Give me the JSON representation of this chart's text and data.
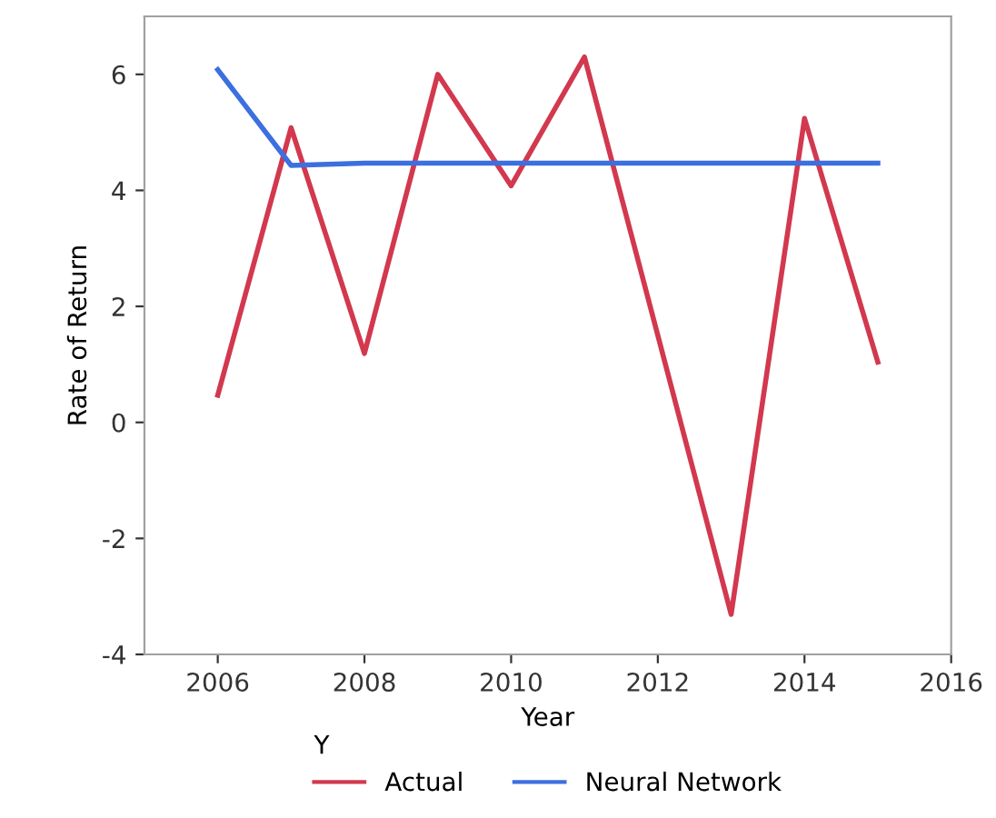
{
  "chart_data": {
    "type": "line",
    "xlabel": "Year",
    "ylabel": "Rate of Return",
    "legend_title": "Y",
    "legend": "bottom",
    "grid": false,
    "marker": "none",
    "line_style": "solid",
    "x": [
      2006,
      2007,
      2008,
      2009,
      2010,
      2011,
      2012,
      2013,
      2014,
      2015
    ],
    "series": [
      {
        "name": "Actual",
        "color": "#d2384e",
        "values": [
          0.47,
          5.08,
          1.19,
          6.0,
          4.08,
          6.3,
          1.5,
          -3.31,
          5.24,
          1.04
        ]
      },
      {
        "name": "Neural Network",
        "color": "#3c6fe0",
        "values": [
          6.08,
          4.43,
          4.47,
          4.47,
          4.47,
          4.47,
          4.47,
          4.47,
          4.47,
          4.47
        ]
      }
    ],
    "xlim": [
      2005,
      2016
    ],
    "xticks": [
      2006,
      2008,
      2010,
      2012,
      2014,
      2016
    ],
    "ylim": [
      -4,
      7
    ],
    "yticks": [
      -4,
      -2,
      0,
      2,
      4,
      6
    ]
  }
}
